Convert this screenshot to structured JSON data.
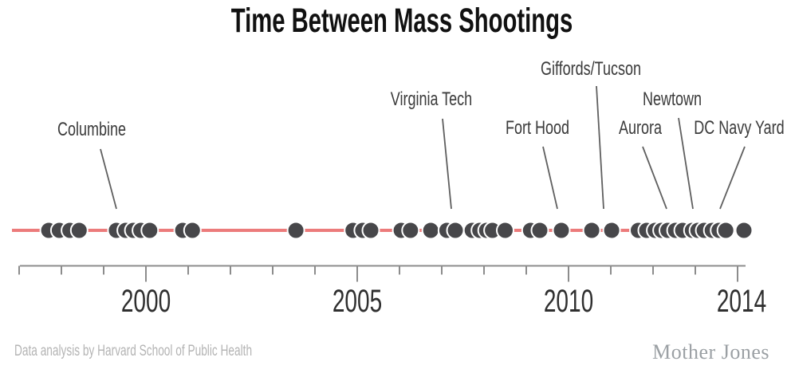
{
  "title": "Time Between Mass Shootings",
  "footer": {
    "credit": "Data analysis by Harvard School of Public Health",
    "brand": "Mother Jones"
  },
  "colors": {
    "background": "#ffffff",
    "title_text": "#111111",
    "annotation_text": "#3b3b3b",
    "leader_line": "#5f5f5f",
    "timeline_line": "#ec7b7b",
    "dot_fill": "#47474a",
    "dot_stroke": "#ffffff",
    "axis": "#8c8c8c",
    "tick_label": "#2f2f2f",
    "credit_text": "#b4b4b4",
    "brand_text": "#9ba0a4"
  },
  "chart_data": {
    "type": "scatter",
    "title": "Time Between Mass Shootings",
    "description": "Timeline dot plot: each dot is one mass shooting plotted by date (decimal year along a single horizontal red line). Values estimated from dot pixel positions.",
    "xlabel": "",
    "ylabel": "",
    "grid": false,
    "legend": false,
    "x_axis": {
      "range": [
        1996.95,
        2014.3
      ],
      "major_ticks": [
        2000,
        2005,
        2010,
        2014
      ],
      "major_tick_labels": [
        "2000",
        "2005",
        "2010",
        "2014"
      ],
      "minor_tick_start": 1997,
      "minor_tick_end": 2014,
      "minor_tick_interval": 1
    },
    "events_decimal_years": [
      1997.7,
      1997.95,
      1998.2,
      1998.42,
      1999.3,
      1999.52,
      1999.7,
      1999.88,
      2000.09,
      2000.87,
      2001.1,
      2003.55,
      2004.9,
      2005.13,
      2005.32,
      2006.04,
      2006.26,
      2006.74,
      2007.12,
      2007.32,
      2007.72,
      2007.9,
      2008.06,
      2008.2,
      2008.5,
      2009.1,
      2009.32,
      2009.83,
      2010.55,
      2011.02,
      2011.65,
      2011.85,
      2012.05,
      2012.2,
      2012.35,
      2012.53,
      2012.7,
      2012.93,
      2013.06,
      2013.21,
      2013.4,
      2013.56,
      2013.72,
      2014.15
    ],
    "annotations": [
      {
        "label": "Columbine",
        "year": 1999.3
      },
      {
        "label": "Virginia Tech",
        "year": 2007.32
      },
      {
        "label": "Fort Hood",
        "year": 2009.83
      },
      {
        "label": "Giffords/Tucson",
        "year": 2011.02
      },
      {
        "label": "Aurora",
        "year": 2012.53
      },
      {
        "label": "Newtown",
        "year": 2012.93
      },
      {
        "label": "DC Navy Yard",
        "year": 2013.72
      }
    ]
  }
}
